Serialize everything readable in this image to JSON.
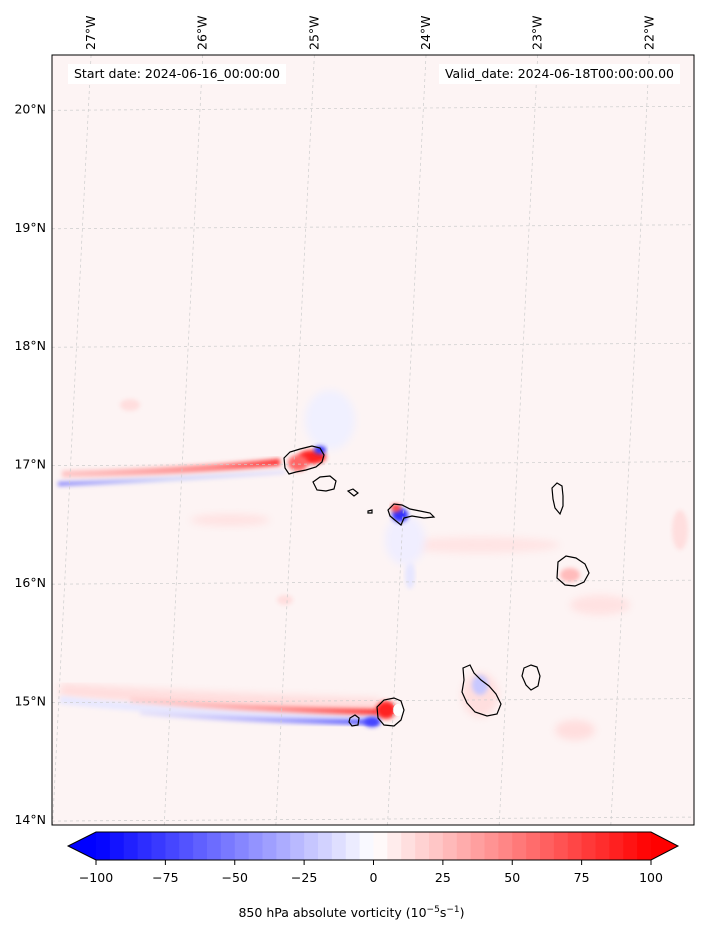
{
  "annotations": {
    "start": "Start date: 2024-06-16_00:00:00",
    "valid": "Valid_date: 2024-06-18T00:00:00.00"
  },
  "map": {
    "lon_range": [
      -27.35,
      -21.6
    ],
    "lat_range": [
      13.95,
      20.45
    ],
    "lon_ticks": [
      -27,
      -26,
      -25,
      -24,
      -23,
      -22
    ],
    "lon_tick_labels": [
      "27°W",
      "26°W",
      "25°W",
      "24°W",
      "23°W",
      "22°W"
    ],
    "lat_ticks": [
      14,
      15,
      16,
      17,
      18,
      19,
      20
    ],
    "lat_tick_labels": [
      "14°N",
      "15°N",
      "16°N",
      "17°N",
      "18°N",
      "19°N",
      "20°N"
    ],
    "background_color": "#fdf4f4",
    "gridlines": true
  },
  "colorbar": {
    "label_prefix": "850 hPa absolute vorticity (10",
    "label_exponent": "−5",
    "label_mid": "s",
    "label_exponent2": "−1",
    "label_suffix": ")",
    "vmin": -100,
    "vmax": 100,
    "ticks": [
      -100,
      -75,
      -50,
      -25,
      0,
      25,
      50,
      75,
      100
    ],
    "tick_labels": [
      "−100",
      "−75",
      "−50",
      "−25",
      "0",
      "25",
      "50",
      "75",
      "100"
    ],
    "extend": "both",
    "cmap": "bwr",
    "low_color": "#0000ff",
    "mid_color": "#ffffff",
    "high_color": "#ff0000"
  }
}
